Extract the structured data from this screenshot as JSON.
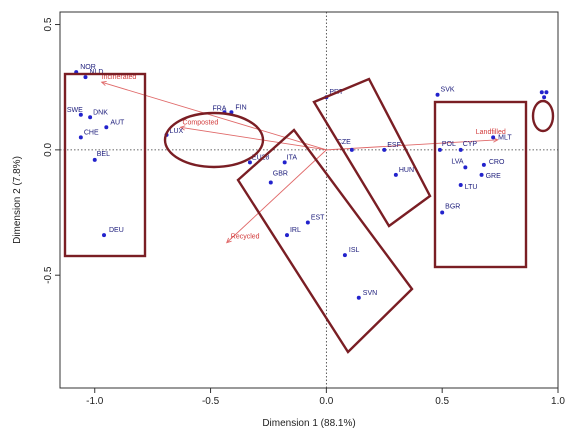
{
  "chart_data": {
    "type": "scatter",
    "title": "",
    "xlabel": "Dimension 1 (88.1%)",
    "ylabel": "Dimension 2 (7.8%)",
    "xlim": [
      -1.15,
      1.0
    ],
    "ylim": [
      -0.95,
      0.55
    ],
    "x_ticks": [
      -1.0,
      -0.5,
      0.0,
      0.5,
      1.0
    ],
    "x_tick_labels": [
      "-1.0",
      "-0.5",
      "0.0",
      "0.5",
      "1.0"
    ],
    "y_ticks": [
      -0.5,
      0.0,
      0.5
    ],
    "y_tick_labels": [
      "-0.5",
      "0.0",
      "0.5"
    ],
    "grid": false,
    "reference_lines": {
      "x": 0,
      "y": 0,
      "style": "dotted"
    },
    "point_color": "#2222cc",
    "vector_color": "#e06a6a",
    "group_outline_color": "#7a1e24",
    "points": [
      {
        "label": "NOR",
        "x": -1.08,
        "y": 0.31
      },
      {
        "label": "NLD",
        "x": -1.04,
        "y": 0.29
      },
      {
        "label": "SWE",
        "x": -1.06,
        "y": 0.14
      },
      {
        "label": "DNK",
        "x": -1.02,
        "y": 0.13
      },
      {
        "label": "AUT",
        "x": -0.95,
        "y": 0.09
      },
      {
        "label": "CHE",
        "x": -1.06,
        "y": 0.05
      },
      {
        "label": "BEL",
        "x": -1.0,
        "y": -0.04
      },
      {
        "label": "DEU",
        "x": -0.96,
        "y": -0.34
      },
      {
        "label": "FIN",
        "x": -0.41,
        "y": 0.15
      },
      {
        "label": "FRA",
        "x": -0.44,
        "y": 0.15
      },
      {
        "label": "LUX",
        "x": -0.69,
        "y": 0.06
      },
      {
        "label": "EU28",
        "x": -0.33,
        "y": -0.05
      },
      {
        "label": "ITA",
        "x": -0.18,
        "y": -0.05
      },
      {
        "label": "GBR",
        "x": -0.24,
        "y": -0.13
      },
      {
        "label": "IRL",
        "x": -0.17,
        "y": -0.34
      },
      {
        "label": "EST",
        "x": -0.08,
        "y": -0.29
      },
      {
        "label": "ISL",
        "x": 0.08,
        "y": -0.42
      },
      {
        "label": "SVN",
        "x": 0.14,
        "y": -0.59
      },
      {
        "label": "PRT",
        "x": 0.0,
        "y": 0.21
      },
      {
        "label": "CZE",
        "x": 0.11,
        "y": 0.0
      },
      {
        "label": "ESF",
        "x": 0.25,
        "y": 0.0
      },
      {
        "label": "HUN",
        "x": 0.3,
        "y": -0.1
      },
      {
        "label": "SVK",
        "x": 0.48,
        "y": 0.22
      },
      {
        "label": "POL",
        "x": 0.49,
        "y": 0.0
      },
      {
        "label": "CYP",
        "x": 0.58,
        "y": 0.0
      },
      {
        "label": "MLT",
        "x": 0.72,
        "y": 0.05
      },
      {
        "label": "CRO",
        "x": 0.68,
        "y": -0.06
      },
      {
        "label": "LVA",
        "x": 0.6,
        "y": -0.07
      },
      {
        "label": "GRE",
        "x": 0.67,
        "y": -0.1
      },
      {
        "label": "LTU",
        "x": 0.58,
        "y": -0.14
      },
      {
        "label": "BGR",
        "x": 0.5,
        "y": -0.25
      },
      {
        "label": "",
        "x": 0.93,
        "y": 0.23
      },
      {
        "label": "",
        "x": 0.95,
        "y": 0.23
      },
      {
        "label": "",
        "x": 0.94,
        "y": 0.21
      }
    ],
    "vectors": [
      {
        "label": "Incinerated",
        "x": -0.97,
        "y": 0.27
      },
      {
        "label": "Composted",
        "x": -0.63,
        "y": 0.09
      },
      {
        "label": "Landfilled",
        "x": 0.74,
        "y": 0.04
      },
      {
        "label": "Recycled",
        "x": -0.43,
        "y": -0.37
      }
    ]
  }
}
